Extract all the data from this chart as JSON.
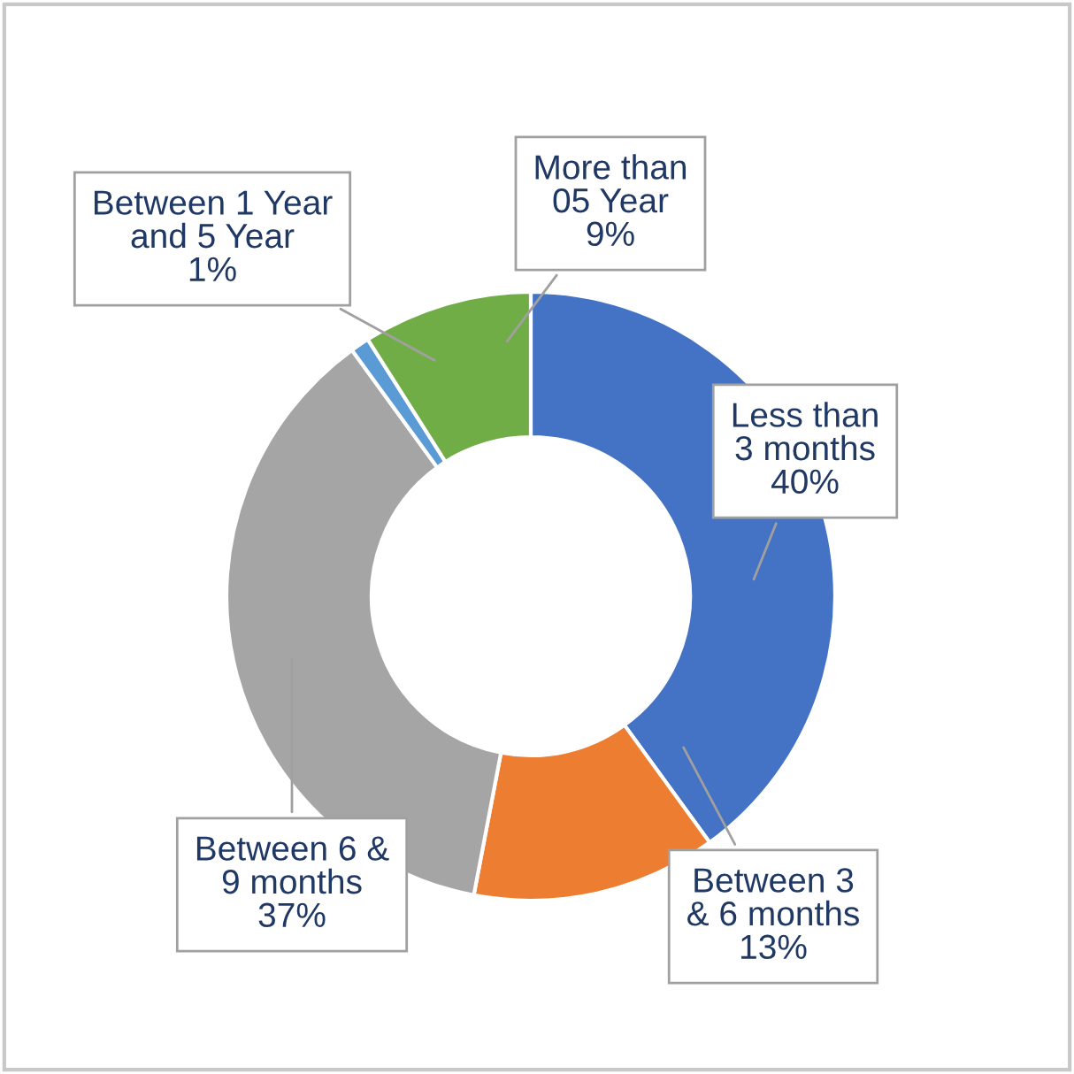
{
  "chart_data": {
    "type": "donut",
    "categories": [
      "Less than 3 months",
      "Between 3 & 6 months",
      "Between 6 & 9 months",
      "Between 1 Year and 5 Year",
      "More than 05 Year"
    ],
    "values": [
      40,
      13,
      37,
      1,
      9
    ],
    "colors": [
      "#4472c4",
      "#ed7d31",
      "#a5a5a5",
      "#5b9bd5",
      "#70ad47"
    ],
    "value_labels": [
      "40%",
      "13%",
      "37%",
      "1%",
      "9%"
    ],
    "legend": false
  }
}
